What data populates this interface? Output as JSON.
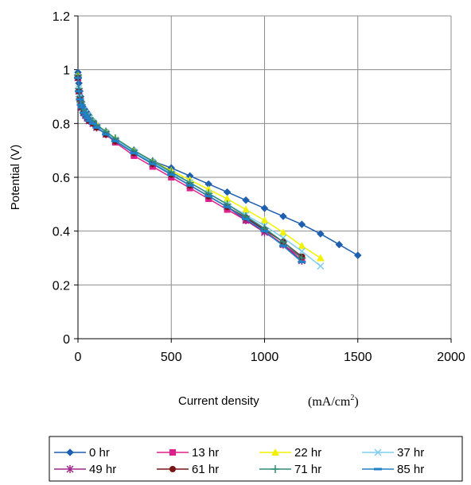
{
  "chart_data": {
    "type": "line",
    "xlabel": "Current density",
    "xunit": {
      "main": "(mA/cm",
      "sup": "2",
      "close": ")"
    },
    "ylabel": "Potential (V)",
    "xlim": [
      0,
      2000
    ],
    "ylim": [
      0,
      1.2
    ],
    "xticks": [
      "0",
      "500",
      "1000",
      "1500",
      "2000"
    ],
    "yticks": [
      "0",
      "0.2",
      "0.4",
      "0.6",
      "0.8",
      "1",
      "1.2"
    ],
    "grid": true,
    "legend_position": "bottom",
    "series": [
      {
        "name": "0 hr",
        "color": "#1f5fb0",
        "marker": "diamond",
        "x": [
          0,
          5,
          10,
          15,
          20,
          30,
          40,
          50,
          60,
          80,
          100,
          150,
          200,
          300,
          400,
          500,
          600,
          700,
          800,
          900,
          1000,
          1100,
          1200,
          1300,
          1400,
          1500
        ],
        "y": [
          0.99,
          0.95,
          0.92,
          0.9,
          0.88,
          0.86,
          0.85,
          0.84,
          0.83,
          0.81,
          0.79,
          0.77,
          0.74,
          0.7,
          0.66,
          0.635,
          0.605,
          0.575,
          0.545,
          0.515,
          0.485,
          0.455,
          0.425,
          0.39,
          0.35,
          0.31
        ]
      },
      {
        "name": "13 hr",
        "color": "#e0208a",
        "marker": "square",
        "x": [
          0,
          5,
          10,
          15,
          20,
          30,
          40,
          50,
          60,
          80,
          100,
          150,
          200,
          300,
          400,
          500,
          600,
          700,
          800,
          900,
          1000,
          1100,
          1200
        ],
        "y": [
          0.97,
          0.92,
          0.89,
          0.87,
          0.86,
          0.84,
          0.83,
          0.82,
          0.81,
          0.8,
          0.79,
          0.76,
          0.73,
          0.68,
          0.64,
          0.6,
          0.56,
          0.52,
          0.48,
          0.44,
          0.4,
          0.35,
          0.3
        ]
      },
      {
        "name": "22 hr",
        "color": "#f2f200",
        "marker": "triangle",
        "x": [
          0,
          5,
          10,
          15,
          20,
          30,
          40,
          50,
          60,
          80,
          100,
          150,
          200,
          300,
          400,
          500,
          600,
          700,
          800,
          900,
          1000,
          1100,
          1200,
          1300
        ],
        "y": [
          0.98,
          0.93,
          0.9,
          0.88,
          0.87,
          0.85,
          0.84,
          0.83,
          0.82,
          0.81,
          0.795,
          0.77,
          0.745,
          0.7,
          0.66,
          0.625,
          0.59,
          0.555,
          0.52,
          0.48,
          0.44,
          0.395,
          0.345,
          0.3
        ]
      },
      {
        "name": "37 hr",
        "color": "#7ecdf0",
        "marker": "x",
        "x": [
          0,
          5,
          10,
          15,
          20,
          30,
          40,
          50,
          60,
          80,
          100,
          150,
          200,
          300,
          400,
          500,
          600,
          700,
          800,
          900,
          1000,
          1100,
          1200,
          1300
        ],
        "y": [
          0.97,
          0.93,
          0.9,
          0.88,
          0.87,
          0.85,
          0.84,
          0.83,
          0.82,
          0.805,
          0.79,
          0.765,
          0.74,
          0.695,
          0.655,
          0.615,
          0.58,
          0.54,
          0.5,
          0.46,
          0.42,
          0.375,
          0.325,
          0.27
        ]
      },
      {
        "name": "49 hr",
        "color": "#a0288c",
        "marker": "asterisk",
        "x": [
          0,
          5,
          10,
          15,
          20,
          30,
          40,
          50,
          60,
          80,
          100,
          150,
          200,
          300,
          400,
          500,
          600,
          700,
          800,
          900,
          1000,
          1100,
          1200
        ],
        "y": [
          0.97,
          0.92,
          0.89,
          0.87,
          0.86,
          0.84,
          0.83,
          0.82,
          0.81,
          0.8,
          0.785,
          0.76,
          0.735,
          0.69,
          0.65,
          0.61,
          0.57,
          0.53,
          0.49,
          0.44,
          0.395,
          0.35,
          0.29
        ]
      },
      {
        "name": "61 hr",
        "color": "#7a1414",
        "marker": "circle",
        "x": [
          0,
          5,
          10,
          15,
          20,
          30,
          40,
          50,
          60,
          80,
          100,
          150,
          200,
          300,
          400,
          500,
          600,
          700,
          800,
          900,
          1000,
          1100,
          1200
        ],
        "y": [
          0.97,
          0.92,
          0.89,
          0.87,
          0.86,
          0.84,
          0.83,
          0.82,
          0.81,
          0.8,
          0.785,
          0.76,
          0.735,
          0.69,
          0.65,
          0.61,
          0.57,
          0.53,
          0.49,
          0.45,
          0.405,
          0.36,
          0.305
        ]
      },
      {
        "name": "71 hr",
        "color": "#2e8b7a",
        "marker": "plus",
        "x": [
          0,
          5,
          10,
          15,
          20,
          30,
          40,
          50,
          60,
          80,
          100,
          150,
          200,
          300,
          400,
          500,
          600,
          700,
          800,
          900,
          1000,
          1100,
          1200
        ],
        "y": [
          0.98,
          0.93,
          0.9,
          0.88,
          0.87,
          0.85,
          0.84,
          0.83,
          0.82,
          0.81,
          0.795,
          0.77,
          0.745,
          0.7,
          0.66,
          0.62,
          0.58,
          0.54,
          0.5,
          0.455,
          0.41,
          0.36,
          0.3
        ]
      },
      {
        "name": "85 hr",
        "color": "#2080c8",
        "marker": "dash",
        "x": [
          0,
          5,
          10,
          15,
          20,
          30,
          40,
          50,
          60,
          80,
          100,
          150,
          200,
          300,
          400,
          500,
          600,
          700,
          800,
          900,
          1000,
          1100,
          1200
        ],
        "y": [
          0.97,
          0.92,
          0.89,
          0.87,
          0.86,
          0.84,
          0.83,
          0.82,
          0.81,
          0.8,
          0.785,
          0.76,
          0.735,
          0.69,
          0.65,
          0.61,
          0.57,
          0.53,
          0.49,
          0.445,
          0.4,
          0.345,
          0.285
        ]
      }
    ]
  }
}
